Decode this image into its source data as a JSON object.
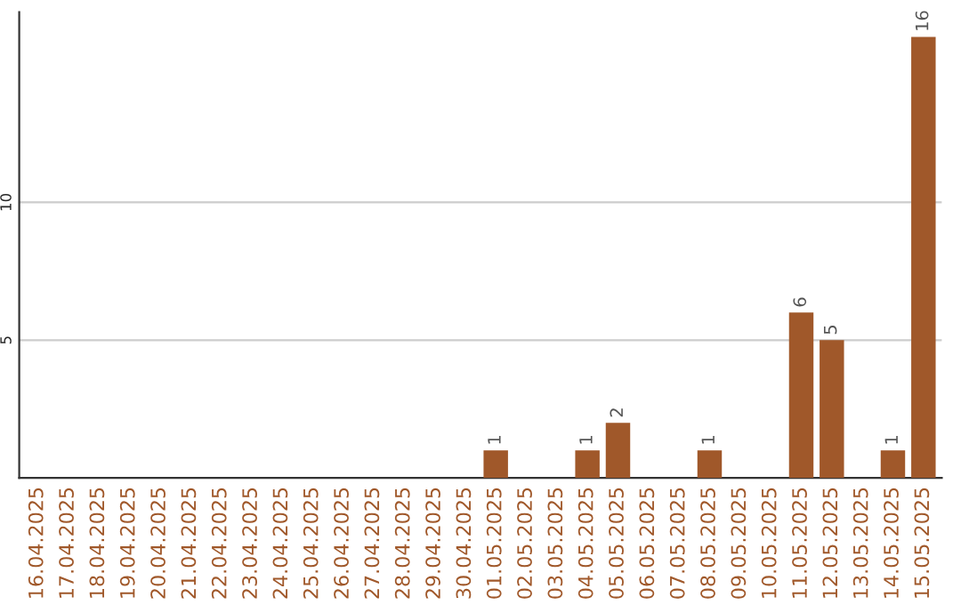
{
  "chart_data": {
    "type": "bar",
    "categories": [
      "16.04.2025",
      "17.04.2025",
      "18.04.2025",
      "19.04.2025",
      "20.04.2025",
      "21.04.2025",
      "22.04.2025",
      "23.04.2025",
      "24.04.2025",
      "25.04.2025",
      "26.04.2025",
      "27.04.2025",
      "28.04.2025",
      "29.04.2025",
      "30.04.2025",
      "01.05.2025",
      "02.05.2025",
      "03.05.2025",
      "04.05.2025",
      "05.05.2025",
      "06.05.2025",
      "07.05.2025",
      "08.05.2025",
      "09.05.2025",
      "10.05.2025",
      "11.05.2025",
      "12.05.2025",
      "13.05.2025",
      "14.05.2025",
      "15.05.2025"
    ],
    "values": [
      0,
      0,
      0,
      0,
      0,
      0,
      0,
      0,
      0,
      0,
      0,
      0,
      0,
      0,
      0,
      1,
      0,
      0,
      1,
      2,
      0,
      0,
      1,
      0,
      0,
      6,
      5,
      0,
      1,
      16
    ],
    "value_labels": [
      null,
      null,
      null,
      null,
      null,
      null,
      null,
      null,
      null,
      null,
      null,
      null,
      null,
      null,
      null,
      "1",
      null,
      null,
      "1",
      "2",
      null,
      null,
      "1",
      null,
      null,
      "6",
      "5",
      null,
      "1",
      "16"
    ],
    "color": "#a0582a",
    "ylim": [
      0,
      16.9
    ],
    "yticks": [
      5,
      10
    ],
    "grid": "y"
  }
}
